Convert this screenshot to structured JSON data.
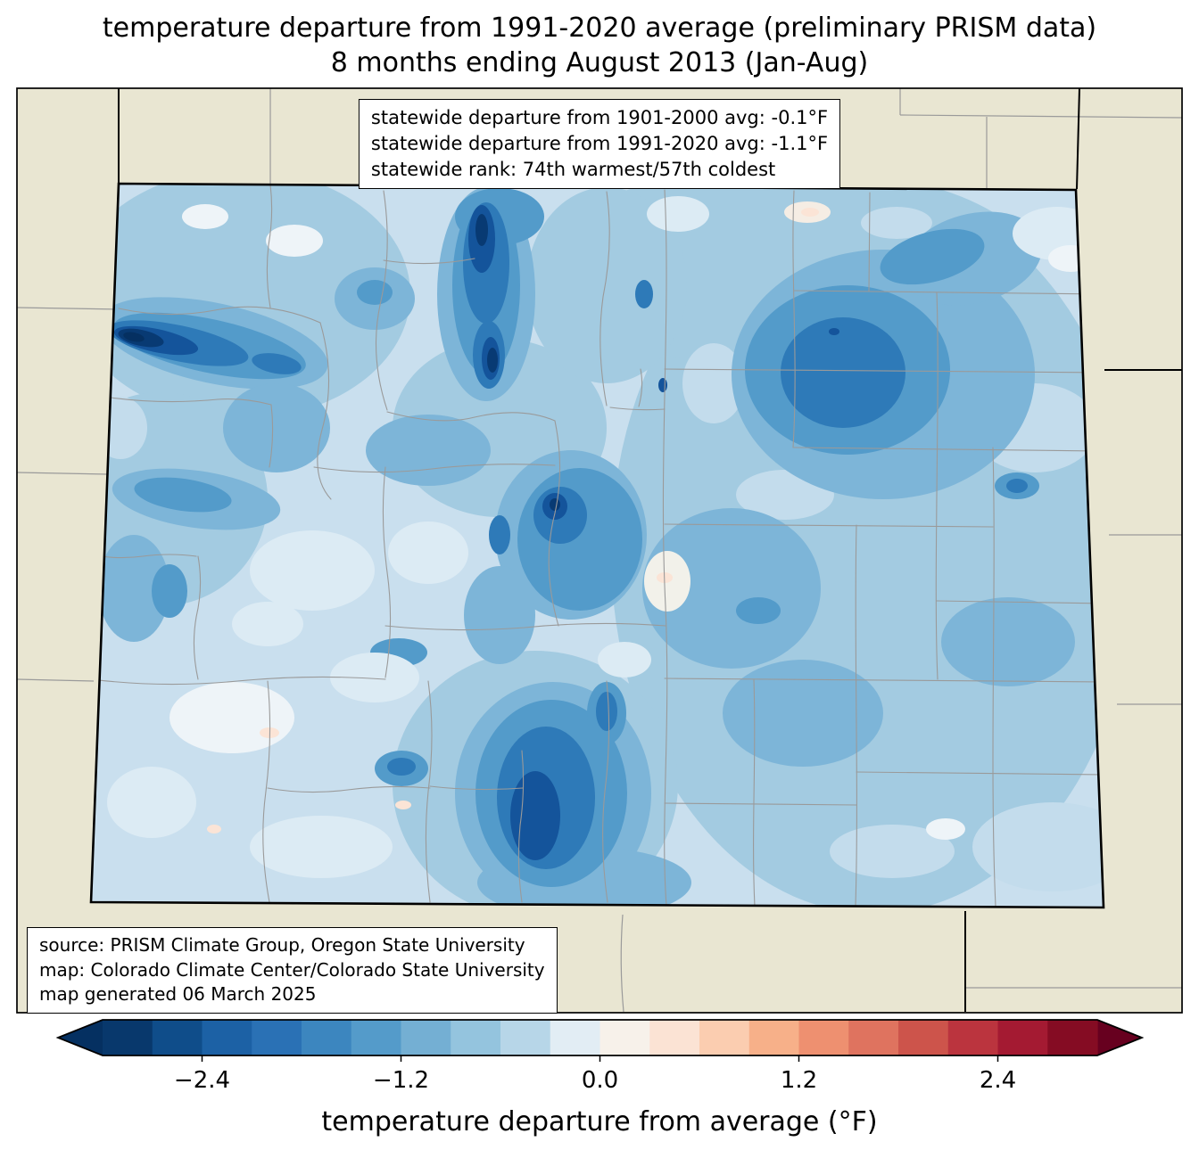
{
  "title": {
    "line1": "temperature departure from 1991-2020 average (preliminary PRISM data)",
    "line2": "8 months ending August 2013 (Jan-Aug)"
  },
  "stats_box": {
    "line1": "statewide departure from 1901-2000 avg: -0.1°F",
    "line2": "statewide departure from 1991-2020 avg: -1.1°F",
    "line3": "statewide rank: 74th warmest/57th coldest"
  },
  "source_box": {
    "line1": "source: PRISM Climate Group, Oregon State University",
    "line2": "map: Colorado Climate Center/Colorado State University",
    "line3": "map generated 06 March 2025"
  },
  "map": {
    "region": "Colorado",
    "background_color": "#e9e6d2",
    "state_border_color": "#000000",
    "county_line_color": "#9a9a9a"
  },
  "colorbar": {
    "label": "temperature departure from average (°F)",
    "ticks": [
      "−2.4",
      "−1.2",
      "0.0",
      "1.2",
      "2.4"
    ],
    "tick_values": [
      -2.4,
      -1.2,
      0.0,
      1.2,
      2.4
    ],
    "range": [
      -3.0,
      3.0
    ],
    "segment_step": 0.3,
    "under_color": "#053061",
    "over_color": "#67001f",
    "segments": [
      "#08386c",
      "#0f4d8a",
      "#1c61a5",
      "#2a71b5",
      "#3c86bf",
      "#549bca",
      "#74afd3",
      "#94c4de",
      "#b7d6e8",
      "#e2edf4",
      "#f7f1ea",
      "#fbe3d4",
      "#fbcdb0",
      "#f7b089",
      "#ee9070",
      "#df735f",
      "#cd544b",
      "#bb343e",
      "#a41a32",
      "#850c23"
    ]
  }
}
